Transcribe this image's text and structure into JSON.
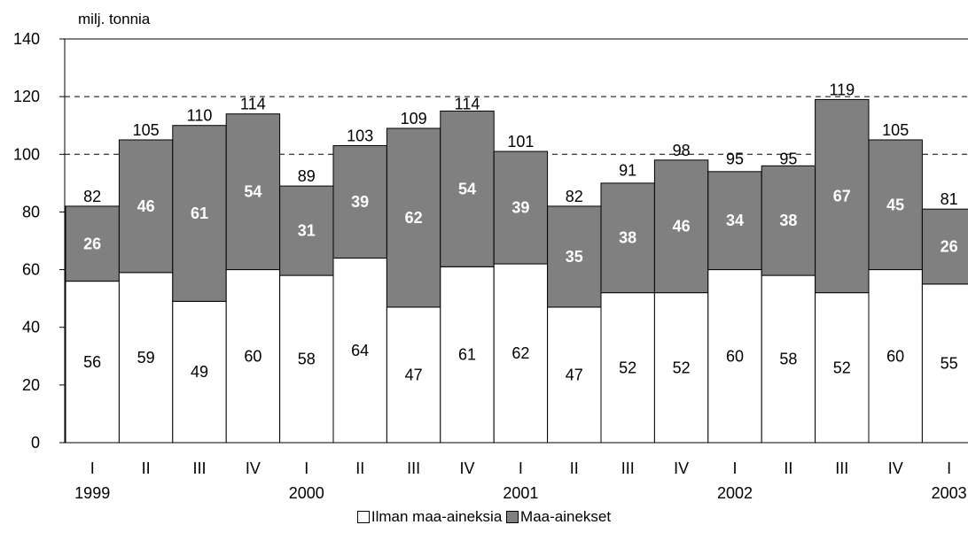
{
  "chart_data": {
    "type": "bar",
    "stacked": true,
    "ylabel": "milj. tonnia",
    "ylim": [
      0,
      140
    ],
    "yticks": [
      0,
      20,
      40,
      60,
      80,
      100,
      120,
      140
    ],
    "gridlines": [
      100,
      120
    ],
    "categories": [
      "I",
      "II",
      "III",
      "IV",
      "I",
      "II",
      "III",
      "IV",
      "I",
      "II",
      "III",
      "IV",
      "I",
      "II",
      "III",
      "IV",
      "I"
    ],
    "year_labels": [
      {
        "index": 0,
        "label": "1999"
      },
      {
        "index": 4,
        "label": "2000"
      },
      {
        "index": 8,
        "label": "2001"
      },
      {
        "index": 12,
        "label": "2002"
      },
      {
        "index": 16,
        "label": "2003"
      }
    ],
    "series": [
      {
        "name": "Ilman maa-aineksia",
        "color": "#ffffff",
        "values": [
          56,
          59,
          49,
          60,
          58,
          64,
          47,
          61,
          62,
          47,
          52,
          52,
          60,
          58,
          52,
          60,
          55
        ]
      },
      {
        "name": "Maa-ainekset",
        "color": "#808080",
        "values": [
          26,
          46,
          61,
          54,
          31,
          39,
          62,
          54,
          39,
          35,
          38,
          46,
          34,
          38,
          67,
          45,
          26
        ]
      }
    ],
    "totals": [
      82,
      105,
      110,
      114,
      89,
      103,
      109,
      114,
      101,
      82,
      91,
      98,
      95,
      95,
      119,
      105,
      81
    ],
    "legend_position": "bottom"
  }
}
